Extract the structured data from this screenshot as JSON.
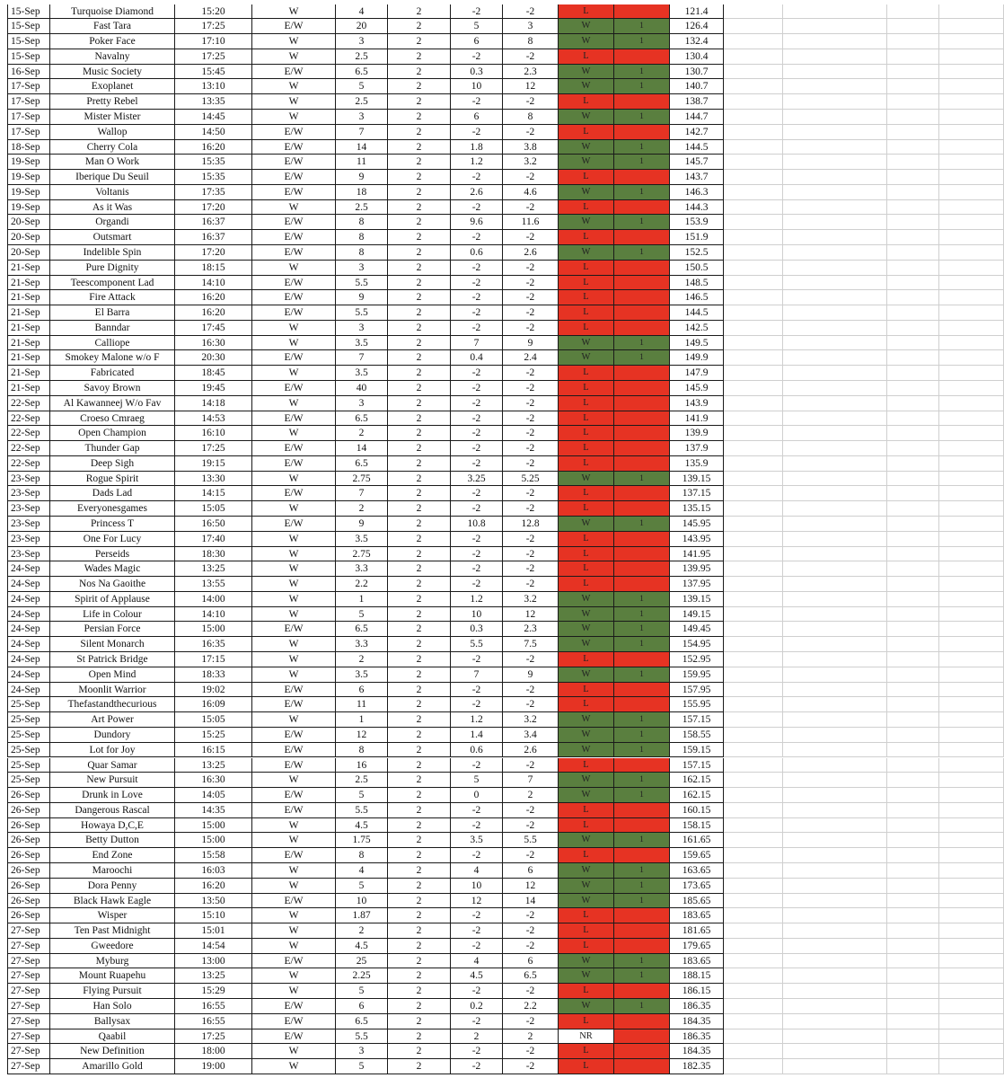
{
  "colors": {
    "win_fill": "#5a7f3f",
    "loss_fill": "#e63323",
    "grid_line": "#1a1a1a"
  },
  "rows": [
    [
      "15-Sep",
      "Turquoise Diamond",
      "15:20",
      "W",
      "4",
      "2",
      "-2",
      "-2",
      "L",
      "",
      "121.4"
    ],
    [
      "15-Sep",
      "Fast Tara",
      "17:25",
      "E/W",
      "20",
      "2",
      "5",
      "3",
      "W",
      "1",
      "126.4"
    ],
    [
      "15-Sep",
      "Poker Face",
      "17:10",
      "W",
      "3",
      "2",
      "6",
      "8",
      "W",
      "1",
      "132.4"
    ],
    [
      "15-Sep",
      "Navalny",
      "17:25",
      "W",
      "2.5",
      "2",
      "-2",
      "-2",
      "L",
      "",
      "130.4"
    ],
    [
      "16-Sep",
      "Music Society",
      "15:45",
      "E/W",
      "6.5",
      "2",
      "0.3",
      "2.3",
      "W",
      "1",
      "130.7"
    ],
    [
      "17-Sep",
      "Exoplanet",
      "13:10",
      "W",
      "5",
      "2",
      "10",
      "12",
      "W",
      "1",
      "140.7"
    ],
    [
      "17-Sep",
      "Pretty Rebel",
      "13:35",
      "W",
      "2.5",
      "2",
      "-2",
      "-2",
      "L",
      "",
      "138.7"
    ],
    [
      "17-Sep",
      "Mister Mister",
      "14:45",
      "W",
      "3",
      "2",
      "6",
      "8",
      "W",
      "1",
      "144.7"
    ],
    [
      "17-Sep",
      "Wallop",
      "14:50",
      "E/W",
      "7",
      "2",
      "-2",
      "-2",
      "L",
      "",
      "142.7"
    ],
    [
      "18-Sep",
      "Cherry Cola",
      "16:20",
      "E/W",
      "14",
      "2",
      "1.8",
      "3.8",
      "W",
      "1",
      "144.5"
    ],
    [
      "19-Sep",
      "Man O Work",
      "15:35",
      "E/W",
      "11",
      "2",
      "1.2",
      "3.2",
      "W",
      "1",
      "145.7"
    ],
    [
      "19-Sep",
      "Iberique Du Seuil",
      "15:35",
      "E/W",
      "9",
      "2",
      "-2",
      "-2",
      "L",
      "",
      "143.7"
    ],
    [
      "19-Sep",
      "Voltanis",
      "17:35",
      "E/W",
      "18",
      "2",
      "2.6",
      "4.6",
      "W",
      "1",
      "146.3"
    ],
    [
      "19-Sep",
      "As it Was",
      "17:20",
      "W",
      "2.5",
      "2",
      "-2",
      "-2",
      "L",
      "",
      "144.3"
    ],
    [
      "20-Sep",
      "Organdi",
      "16:37",
      "E/W",
      "8",
      "2",
      "9.6",
      "11.6",
      "W",
      "1",
      "153.9"
    ],
    [
      "20-Sep",
      "Outsmart",
      "16:37",
      "E/W",
      "8",
      "2",
      "-2",
      "-2",
      "L",
      "",
      "151.9"
    ],
    [
      "20-Sep",
      "Indelible Spin",
      "17:20",
      "E/W",
      "8",
      "2",
      "0.6",
      "2.6",
      "W",
      "1",
      "152.5"
    ],
    [
      "21-Sep",
      "Pure Dignity",
      "18:15",
      "W",
      "3",
      "2",
      "-2",
      "-2",
      "L",
      "",
      "150.5"
    ],
    [
      "21-Sep",
      "Teescomponent Lad",
      "14:10",
      "E/W",
      "5.5",
      "2",
      "-2",
      "-2",
      "L",
      "",
      "148.5"
    ],
    [
      "21-Sep",
      "Fire Attack",
      "16:20",
      "E/W",
      "9",
      "2",
      "-2",
      "-2",
      "L",
      "",
      "146.5"
    ],
    [
      "21-Sep",
      "El Barra",
      "16:20",
      "E/W",
      "5.5",
      "2",
      "-2",
      "-2",
      "L",
      "",
      "144.5"
    ],
    [
      "21-Sep",
      "Banndar",
      "17:45",
      "W",
      "3",
      "2",
      "-2",
      "-2",
      "L",
      "",
      "142.5"
    ],
    [
      "21-Sep",
      "Calliope",
      "16:30",
      "W",
      "3.5",
      "2",
      "7",
      "9",
      "W",
      "1",
      "149.5"
    ],
    [
      "21-Sep",
      "Smokey Malone w/o F",
      "20:30",
      "E/W",
      "7",
      "2",
      "0.4",
      "2.4",
      "W",
      "1",
      "149.9"
    ],
    [
      "21-Sep",
      "Fabricated",
      "18:45",
      "W",
      "3.5",
      "2",
      "-2",
      "-2",
      "L",
      "",
      "147.9"
    ],
    [
      "21-Sep",
      "Savoy Brown",
      "19:45",
      "E/W",
      "40",
      "2",
      "-2",
      "-2",
      "L",
      "",
      "145.9"
    ],
    [
      "22-Sep",
      "Al Kawanneej W/o Fav",
      "14:18",
      "W",
      "3",
      "2",
      "-2",
      "-2",
      "L",
      "",
      "143.9"
    ],
    [
      "22-Sep",
      "Croeso Cmraeg",
      "14:53",
      "E/W",
      "6.5",
      "2",
      "-2",
      "-2",
      "L",
      "",
      "141.9"
    ],
    [
      "22-Sep",
      "Open Champion",
      "16:10",
      "W",
      "2",
      "2",
      "-2",
      "-2",
      "L",
      "",
      "139.9"
    ],
    [
      "22-Sep",
      "Thunder Gap",
      "17:25",
      "E/W",
      "14",
      "2",
      "-2",
      "-2",
      "L",
      "",
      "137.9"
    ],
    [
      "22-Sep",
      "Deep Sigh",
      "19:15",
      "E/W",
      "6.5",
      "2",
      "-2",
      "-2",
      "L",
      "",
      "135.9"
    ],
    [
      "23-Sep",
      "Rogue Spirit",
      "13:30",
      "W",
      "2.75",
      "2",
      "3.25",
      "5.25",
      "W",
      "1",
      "139.15"
    ],
    [
      "23-Sep",
      "Dads Lad",
      "14:15",
      "E/W",
      "7",
      "2",
      "-2",
      "-2",
      "L",
      "",
      "137.15"
    ],
    [
      "23-Sep",
      "Everyonesgames",
      "15:05",
      "W",
      "2",
      "2",
      "-2",
      "-2",
      "L",
      "",
      "135.15"
    ],
    [
      "23-Sep",
      "Princess T",
      "16:50",
      "E/W",
      "9",
      "2",
      "10.8",
      "12.8",
      "W",
      "1",
      "145.95"
    ],
    [
      "23-Sep",
      "One For Lucy",
      "17:40",
      "W",
      "3.5",
      "2",
      "-2",
      "-2",
      "L",
      "",
      "143.95"
    ],
    [
      "23-Sep",
      "Perseids",
      "18:30",
      "W",
      "2.75",
      "2",
      "-2",
      "-2",
      "L",
      "",
      "141.95"
    ],
    [
      "24-Sep",
      "Wades Magic",
      "13:25",
      "W",
      "3.3",
      "2",
      "-2",
      "-2",
      "L",
      "",
      "139.95"
    ],
    [
      "24-Sep",
      "Nos Na Gaoithe",
      "13:55",
      "W",
      "2.2",
      "2",
      "-2",
      "-2",
      "L",
      "",
      "137.95"
    ],
    [
      "24-Sep",
      "Spirit of Applause",
      "14:00",
      "W",
      "1",
      "2",
      "1.2",
      "3.2",
      "W",
      "1",
      "139.15"
    ],
    [
      "24-Sep",
      "Life in Colour",
      "14:10",
      "W",
      "5",
      "2",
      "10",
      "12",
      "W",
      "1",
      "149.15"
    ],
    [
      "24-Sep",
      "Persian Force",
      "15:00",
      "E/W",
      "6.5",
      "2",
      "0.3",
      "2.3",
      "W",
      "1",
      "149.45"
    ],
    [
      "24-Sep",
      "Silent Monarch",
      "16:35",
      "W",
      "3.3",
      "2",
      "5.5",
      "7.5",
      "W",
      "1",
      "154.95"
    ],
    [
      "24-Sep",
      "St Patrick Bridge",
      "17:15",
      "W",
      "2",
      "2",
      "-2",
      "-2",
      "L",
      "",
      "152.95"
    ],
    [
      "24-Sep",
      "Open Mind",
      "18:33",
      "W",
      "3.5",
      "2",
      "7",
      "9",
      "W",
      "1",
      "159.95"
    ],
    [
      "24-Sep",
      "Moonlit Warrior",
      "19:02",
      "E/W",
      "6",
      "2",
      "-2",
      "-2",
      "L",
      "",
      "157.95"
    ],
    [
      "25-Sep",
      "Thefastandthecurious",
      "16:09",
      "E/W",
      "11",
      "2",
      "-2",
      "-2",
      "L",
      "",
      "155.95"
    ],
    [
      "25-Sep",
      "Art Power",
      "15:05",
      "W",
      "1",
      "2",
      "1.2",
      "3.2",
      "W",
      "1",
      "157.15"
    ],
    [
      "25-Sep",
      "Dundory",
      "15:25",
      "E/W",
      "12",
      "2",
      "1.4",
      "3.4",
      "W",
      "1",
      "158.55"
    ],
    [
      "25-Sep",
      "Lot for Joy",
      "16:15",
      "E/W",
      "8",
      "2",
      "0.6",
      "2.6",
      "W",
      "1",
      "159.15"
    ],
    [
      "25-Sep",
      "Quar Samar",
      "13:25",
      "E/W",
      "16",
      "2",
      "-2",
      "-2",
      "L",
      "",
      "157.15"
    ],
    [
      "25-Sep",
      "New Pursuit",
      "16:30",
      "W",
      "2.5",
      "2",
      "5",
      "7",
      "W",
      "1",
      "162.15"
    ],
    [
      "26-Sep",
      "Drunk in Love",
      "14:05",
      "E/W",
      "5",
      "2",
      "0",
      "2",
      "W",
      "1",
      "162.15"
    ],
    [
      "26-Sep",
      "Dangerous Rascal",
      "14:35",
      "E/W",
      "5.5",
      "2",
      "-2",
      "-2",
      "L",
      "",
      "160.15"
    ],
    [
      "26-Sep",
      "Howaya D,C,E",
      "15:00",
      "W",
      "4.5",
      "2",
      "-2",
      "-2",
      "L",
      "",
      "158.15"
    ],
    [
      "26-Sep",
      "Betty Dutton",
      "15:00",
      "W",
      "1.75",
      "2",
      "3.5",
      "5.5",
      "W",
      "1",
      "161.65"
    ],
    [
      "26-Sep",
      "End Zone",
      "15:58",
      "E/W",
      "8",
      "2",
      "-2",
      "-2",
      "L",
      "",
      "159.65"
    ],
    [
      "26-Sep",
      "Maroochi",
      "16:03",
      "W",
      "4",
      "2",
      "4",
      "6",
      "W",
      "1",
      "163.65"
    ],
    [
      "26-Sep",
      "Dora Penny",
      "16:20",
      "W",
      "5",
      "2",
      "10",
      "12",
      "W",
      "1",
      "173.65"
    ],
    [
      "26-Sep",
      "Black Hawk Eagle",
      "13:50",
      "E/W",
      "10",
      "2",
      "12",
      "14",
      "W",
      "1",
      "185.65"
    ],
    [
      "26-Sep",
      "Wisper",
      "15:10",
      "W",
      "1.87",
      "2",
      "-2",
      "-2",
      "L",
      "",
      "183.65"
    ],
    [
      "27-Sep",
      "Ten Past Midnight",
      "15:01",
      "W",
      "2",
      "2",
      "-2",
      "-2",
      "L",
      "",
      "181.65"
    ],
    [
      "27-Sep",
      "Gweedore",
      "14:54",
      "W",
      "4.5",
      "2",
      "-2",
      "-2",
      "L",
      "",
      "179.65"
    ],
    [
      "27-Sep",
      "Myburg",
      "13:00",
      "E/W",
      "25",
      "2",
      "4",
      "6",
      "W",
      "1",
      "183.65"
    ],
    [
      "27-Sep",
      "Mount Ruapehu",
      "13:25",
      "W",
      "2.25",
      "2",
      "4.5",
      "6.5",
      "W",
      "1",
      "188.15"
    ],
    [
      "27-Sep",
      "Flying Pursuit",
      "15:29",
      "W",
      "5",
      "2",
      "-2",
      "-2",
      "L",
      "",
      "186.15"
    ],
    [
      "27-Sep",
      "Han Solo",
      "16:55",
      "E/W",
      "6",
      "2",
      "0.2",
      "2.2",
      "W",
      "1",
      "186.35"
    ],
    [
      "27-Sep",
      "Ballysax",
      "16:55",
      "E/W",
      "6.5",
      "2",
      "-2",
      "-2",
      "L",
      "",
      "184.35"
    ],
    [
      "27-Sep",
      "Qaabil",
      "17:25",
      "E/W",
      "5.5",
      "2",
      "2",
      "2",
      "NR",
      "",
      "186.35"
    ],
    [
      "27-Sep",
      "New Definition",
      "18:00",
      "W",
      "3",
      "2",
      "-2",
      "-2",
      "L",
      "",
      "184.35"
    ],
    [
      "27-Sep",
      "Amarillo Gold",
      "19:00",
      "W",
      "5",
      "2",
      "-2",
      "-2",
      "L",
      "",
      "182.35"
    ]
  ]
}
